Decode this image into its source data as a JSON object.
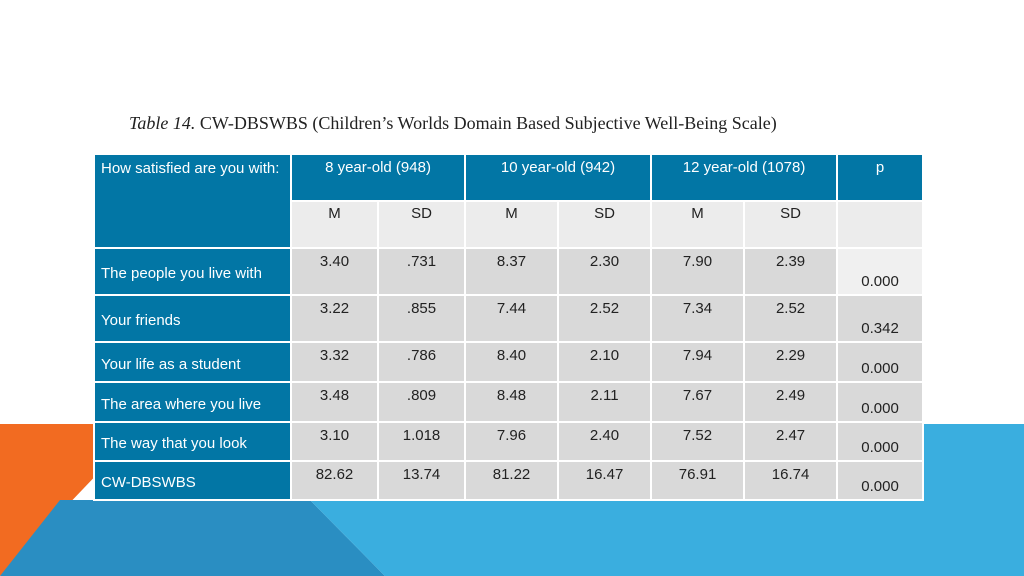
{
  "caption": {
    "number": "Table 14.",
    "title": "CW-DBSWBS (Children’s Worlds Domain Based Subjective Well-Being Scale)"
  },
  "table": {
    "corner_label": "How satisfied are you with:",
    "groups": [
      "8 year-old (948)",
      "10 year-old (942)",
      "12 year-old (1078)"
    ],
    "p_label": "p",
    "subheaders": [
      "M",
      "SD",
      "M",
      "SD",
      "M",
      "SD"
    ],
    "rows": [
      {
        "label": "The people you live with",
        "values": [
          "3.40",
          ".731",
          "8.37",
          "2.30",
          "7.90",
          "2.39"
        ],
        "p": "0.000"
      },
      {
        "label": "Your friends",
        "values": [
          "3.22",
          ".855",
          "7.44",
          "2.52",
          "7.34",
          "2.52"
        ],
        "p": "0.342"
      },
      {
        "label": "Your life as a student",
        "values": [
          "3.32",
          ".786",
          "8.40",
          "2.10",
          "7.94",
          "2.29"
        ],
        "p": "0.000"
      },
      {
        "label": "The area where you live",
        "values": [
          "3.48",
          ".809",
          "8.48",
          "2.11",
          "7.67",
          "2.49"
        ],
        "p": "0.000"
      },
      {
        "label": "The way that you look",
        "values": [
          "3.10",
          "1.018",
          "7.96",
          "2.40",
          "7.52",
          "2.47"
        ],
        "p": "0.000"
      },
      {
        "label": "CW-DBSWBS",
        "values": [
          "82.62",
          "13.74",
          "81.22",
          "16.47",
          "76.91",
          "16.74"
        ],
        "p": "0.000"
      }
    ]
  },
  "colors": {
    "header_blue": "#0276a5",
    "accent_orange": "#f26b21",
    "accent_blue": "#3aaedf",
    "accent_dark_blue": "#2a8ec2"
  }
}
